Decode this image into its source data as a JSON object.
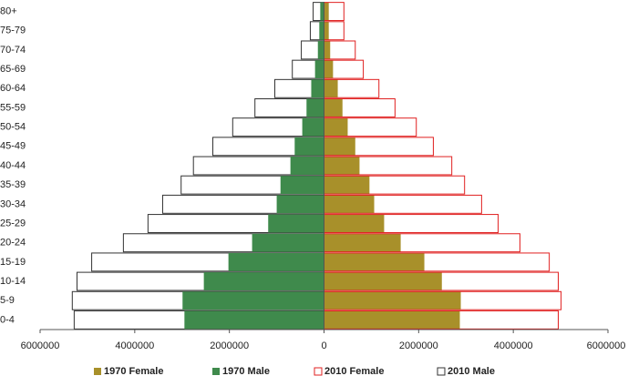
{
  "chart_data": {
    "type": "bar",
    "orientation": "horizontal",
    "stacked": false,
    "categories": [
      "0-4",
      "5-9",
      "10-14",
      "15-19",
      "20-24",
      "25-29",
      "30-34",
      "35-39",
      "40-44",
      "45-49",
      "50-54",
      "55-59",
      "60-64",
      "65-69",
      "70-74",
      "75-79",
      "80+"
    ],
    "series": [
      {
        "name": "1970 Female",
        "color": "#a8902a",
        "outline": null,
        "values": [
          2870000,
          2890000,
          2490000,
          2120000,
          1620000,
          1270000,
          1060000,
          960000,
          750000,
          660000,
          500000,
          390000,
          290000,
          190000,
          130000,
          100000,
          100000
        ]
      },
      {
        "name": "1970 Male",
        "color": "#3f8a4c",
        "outline": null,
        "values": [
          -2950000,
          -2990000,
          -2540000,
          -2020000,
          -1520000,
          -1180000,
          -1000000,
          -920000,
          -710000,
          -620000,
          -460000,
          -370000,
          -270000,
          -190000,
          -130000,
          -100000,
          -80000
        ]
      },
      {
        "name": "2010 Female",
        "color": "none",
        "outline": "#e02020",
        "values": [
          4950000,
          5010000,
          4950000,
          4760000,
          4140000,
          3680000,
          3330000,
          2970000,
          2700000,
          2310000,
          1950000,
          1500000,
          1160000,
          830000,
          660000,
          420000,
          420000
        ]
      },
      {
        "name": "2010 Male",
        "color": "#ffffff",
        "outline": "#333333",
        "values": [
          -5280000,
          -5320000,
          -5220000,
          -4910000,
          -4240000,
          -3720000,
          -3410000,
          -3020000,
          -2760000,
          -2350000,
          -1930000,
          -1460000,
          -1040000,
          -670000,
          -480000,
          -290000,
          -230000
        ]
      }
    ],
    "xlim": [
      -6000000,
      6000000
    ],
    "xticks": [
      {
        "value": -6000000,
        "label": "6000000"
      },
      {
        "value": -4000000,
        "label": "4000000"
      },
      {
        "value": -2000000,
        "label": "2000000"
      },
      0,
      2000000,
      4000000,
      6000000
    ],
    "grid": false,
    "legend": "bottom"
  }
}
